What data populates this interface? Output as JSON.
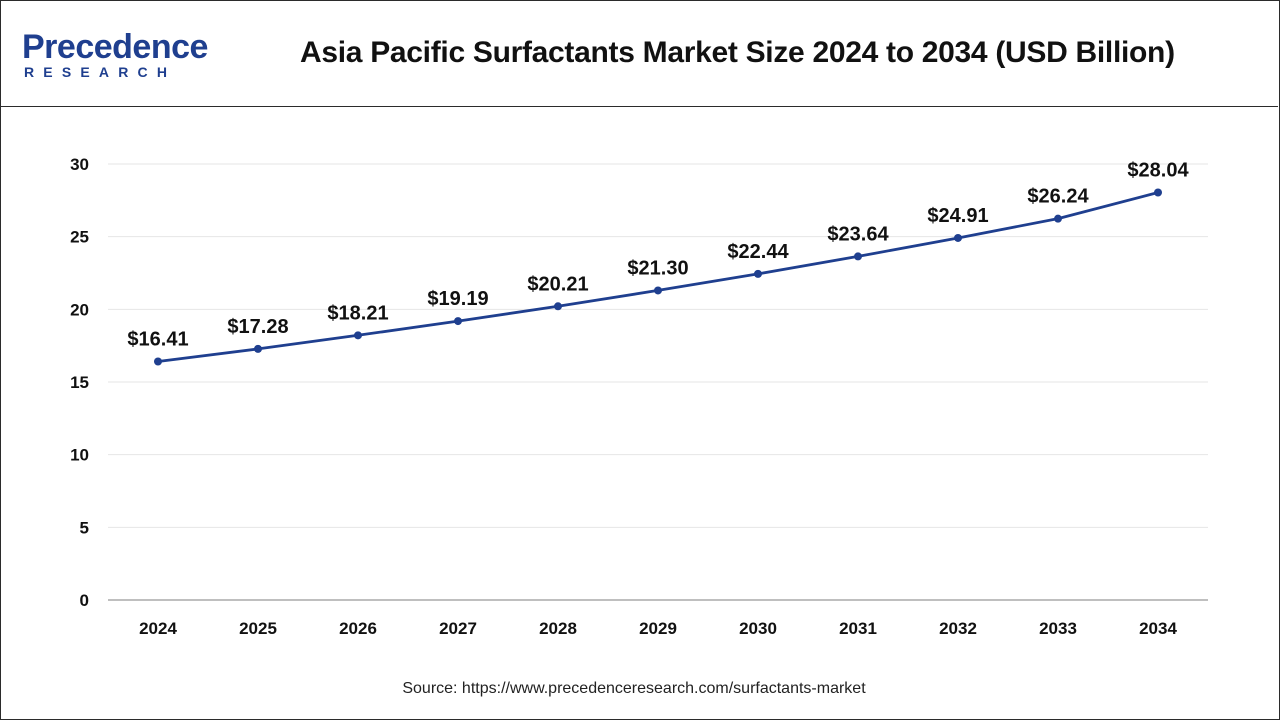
{
  "header": {
    "logo_word": "Precedence",
    "logo_sub": "RESEARCH",
    "title": "Asia Pacific Surfactants Market Size 2024 to 2034 (USD Billion)"
  },
  "footer": {
    "source": "Source: https://www.precedenceresearch.com/surfactants-market"
  },
  "colors": {
    "line": "#1f3f8f",
    "brand": "#1f3f8f",
    "grid": "#e6e6e6"
  },
  "chart_data": {
    "type": "line",
    "title": "Asia Pacific Surfactants Market Size 2024 to 2034 (USD Billion)",
    "x": [
      "2024",
      "2025",
      "2026",
      "2027",
      "2028",
      "2029",
      "2030",
      "2031",
      "2032",
      "2033",
      "2034"
    ],
    "series": [
      {
        "values": [
          16.41,
          17.28,
          18.21,
          19.19,
          20.21,
          21.3,
          22.44,
          23.64,
          24.91,
          26.24,
          28.04
        ],
        "labels": [
          "$16.41",
          "$17.28",
          "$18.21",
          "$19.19",
          "$20.21",
          "$21.30",
          "$22.44",
          "$23.64",
          "$24.91",
          "$26.24",
          "$28.04"
        ]
      }
    ],
    "yticks": [
      "0",
      "5",
      "10",
      "15",
      "20",
      "25",
      "30"
    ],
    "ylim": [
      0,
      30
    ],
    "grid": true,
    "legend": "none"
  }
}
